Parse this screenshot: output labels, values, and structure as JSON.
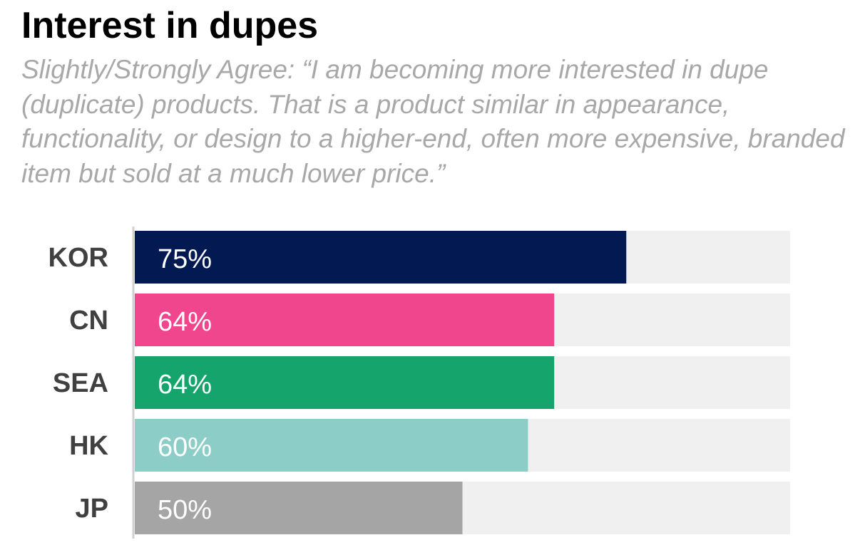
{
  "header": {
    "title": "Interest in dupes",
    "subtitle": "Slightly/Strongly Agree: “I am becoming more interested in dupe (duplicate) products. That is a product similar in appearance, functionality, or design to a higher-end, often more expensive, branded item but sold at a much lower price.”"
  },
  "chart_data": {
    "type": "bar",
    "orientation": "horizontal",
    "title": "Interest in dupes",
    "categories": [
      "KOR",
      "CN",
      "SEA",
      "HK",
      "JP"
    ],
    "values": [
      75,
      64,
      64,
      60,
      50
    ],
    "value_labels": [
      "75%",
      "64%",
      "64%",
      "60%",
      "50%"
    ],
    "xlim": [
      0,
      100
    ],
    "colors": [
      "#021952",
      "#ef468d",
      "#14a46c",
      "#8dcdc8",
      "#a5a5a5"
    ],
    "track_color": "#f0f0f0",
    "axis_color": "#d0d0d0",
    "label_color": "#404040",
    "value_label_color": "#ffffff",
    "grid": false,
    "legend": "none"
  }
}
